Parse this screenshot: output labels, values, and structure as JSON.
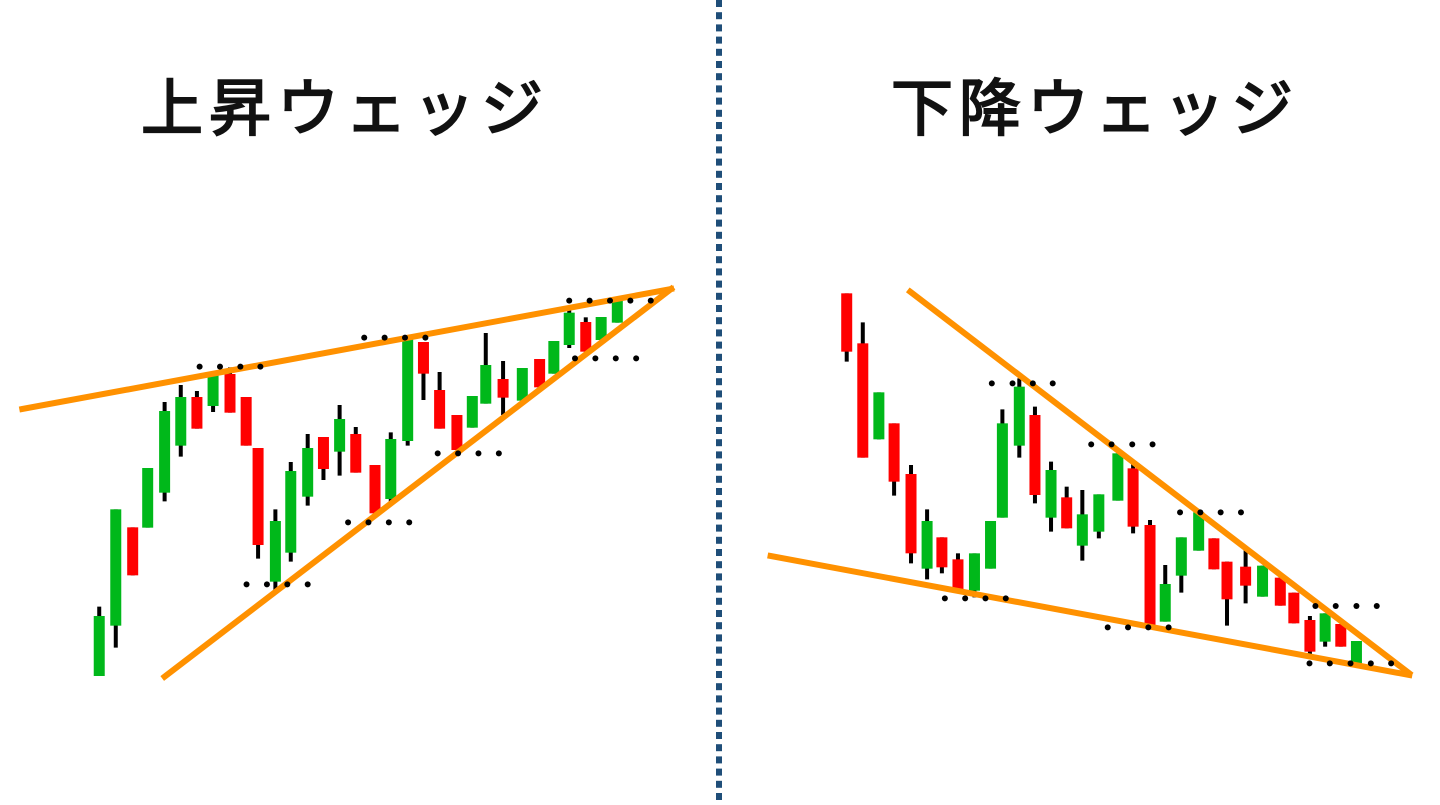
{
  "left_panel": {
    "title": "上昇ウェッジ"
  },
  "right_panel": {
    "title": "下降ウェッジ"
  },
  "colors": {
    "bullish": "#00b81a",
    "bearish": "#ff0000",
    "wick": "#000000",
    "trendline": "#ff9100",
    "divider": "#1f4e79",
    "touch_dot": "#000000"
  }
}
